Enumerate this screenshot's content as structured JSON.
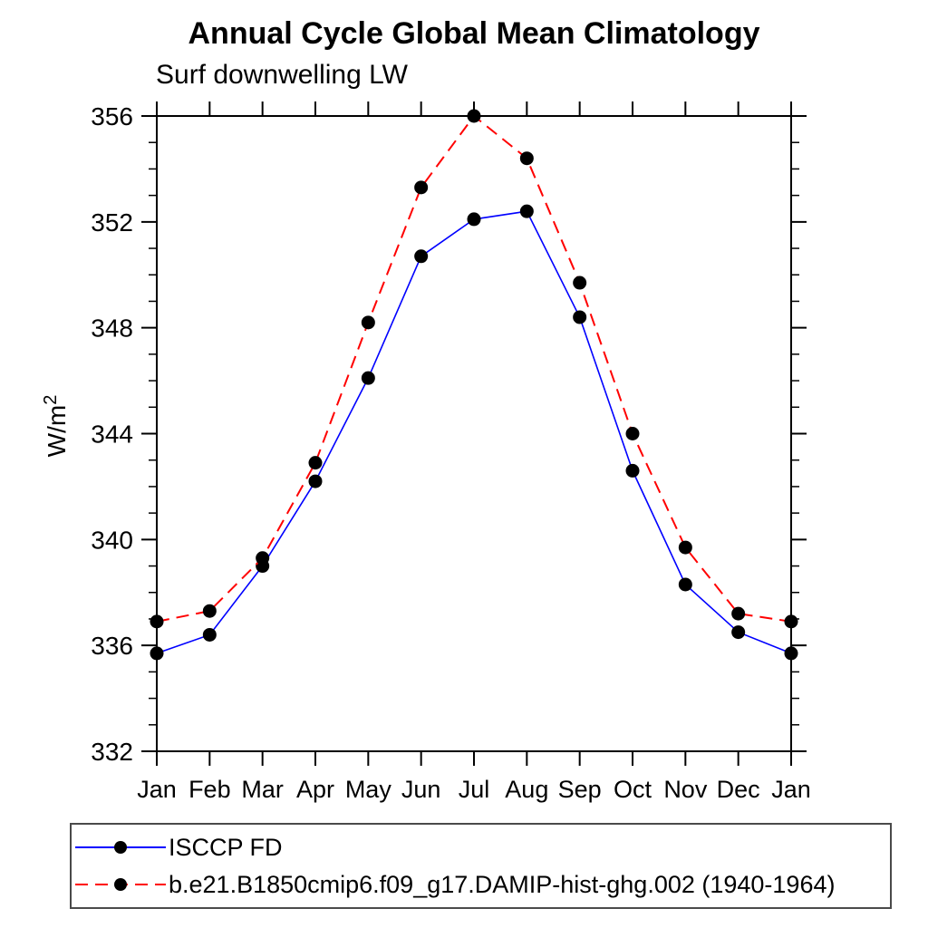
{
  "page": {
    "background": "#ffffff"
  },
  "chart_data": {
    "type": "line",
    "title": "Annual Cycle Global Mean Climatology",
    "subtitle": "Surf downwelling LW",
    "ylabel": "W/m²",
    "ylabel_parts": {
      "base": "W/m",
      "sup": "2"
    },
    "categories": [
      "Jan",
      "Feb",
      "Mar",
      "Apr",
      "May",
      "Jun",
      "Jul",
      "Aug",
      "Sep",
      "Oct",
      "Nov",
      "Dec",
      "Jan"
    ],
    "series": [
      {
        "name": "ISCCP FD",
        "color": "#0000ff",
        "line_style": "solid",
        "marker": "filled-circle",
        "marker_color": "#000000",
        "values": [
          335.7,
          336.4,
          339.0,
          342.2,
          346.1,
          350.7,
          352.1,
          352.4,
          348.4,
          342.6,
          338.3,
          336.5,
          335.7
        ]
      },
      {
        "name": "b.e21.B1850cmip6.f09_g17.DAMIP-hist-ghg.002 (1940-1964)",
        "color": "#ff0000",
        "line_style": "dashed",
        "marker": "filled-circle",
        "marker_color": "#000000",
        "values": [
          336.9,
          337.3,
          339.3,
          342.9,
          348.2,
          353.3,
          356.0,
          354.4,
          349.7,
          344.0,
          339.7,
          337.2,
          336.9
        ]
      }
    ],
    "ylim": [
      332,
      356
    ],
    "ytick_major_interval": 4,
    "ytick_minor_interval": 1,
    "ytick_labels": [
      "332",
      "336",
      "340",
      "344",
      "348",
      "352",
      "356"
    ],
    "grid": "off",
    "legend_position": "bottom-left-box"
  }
}
